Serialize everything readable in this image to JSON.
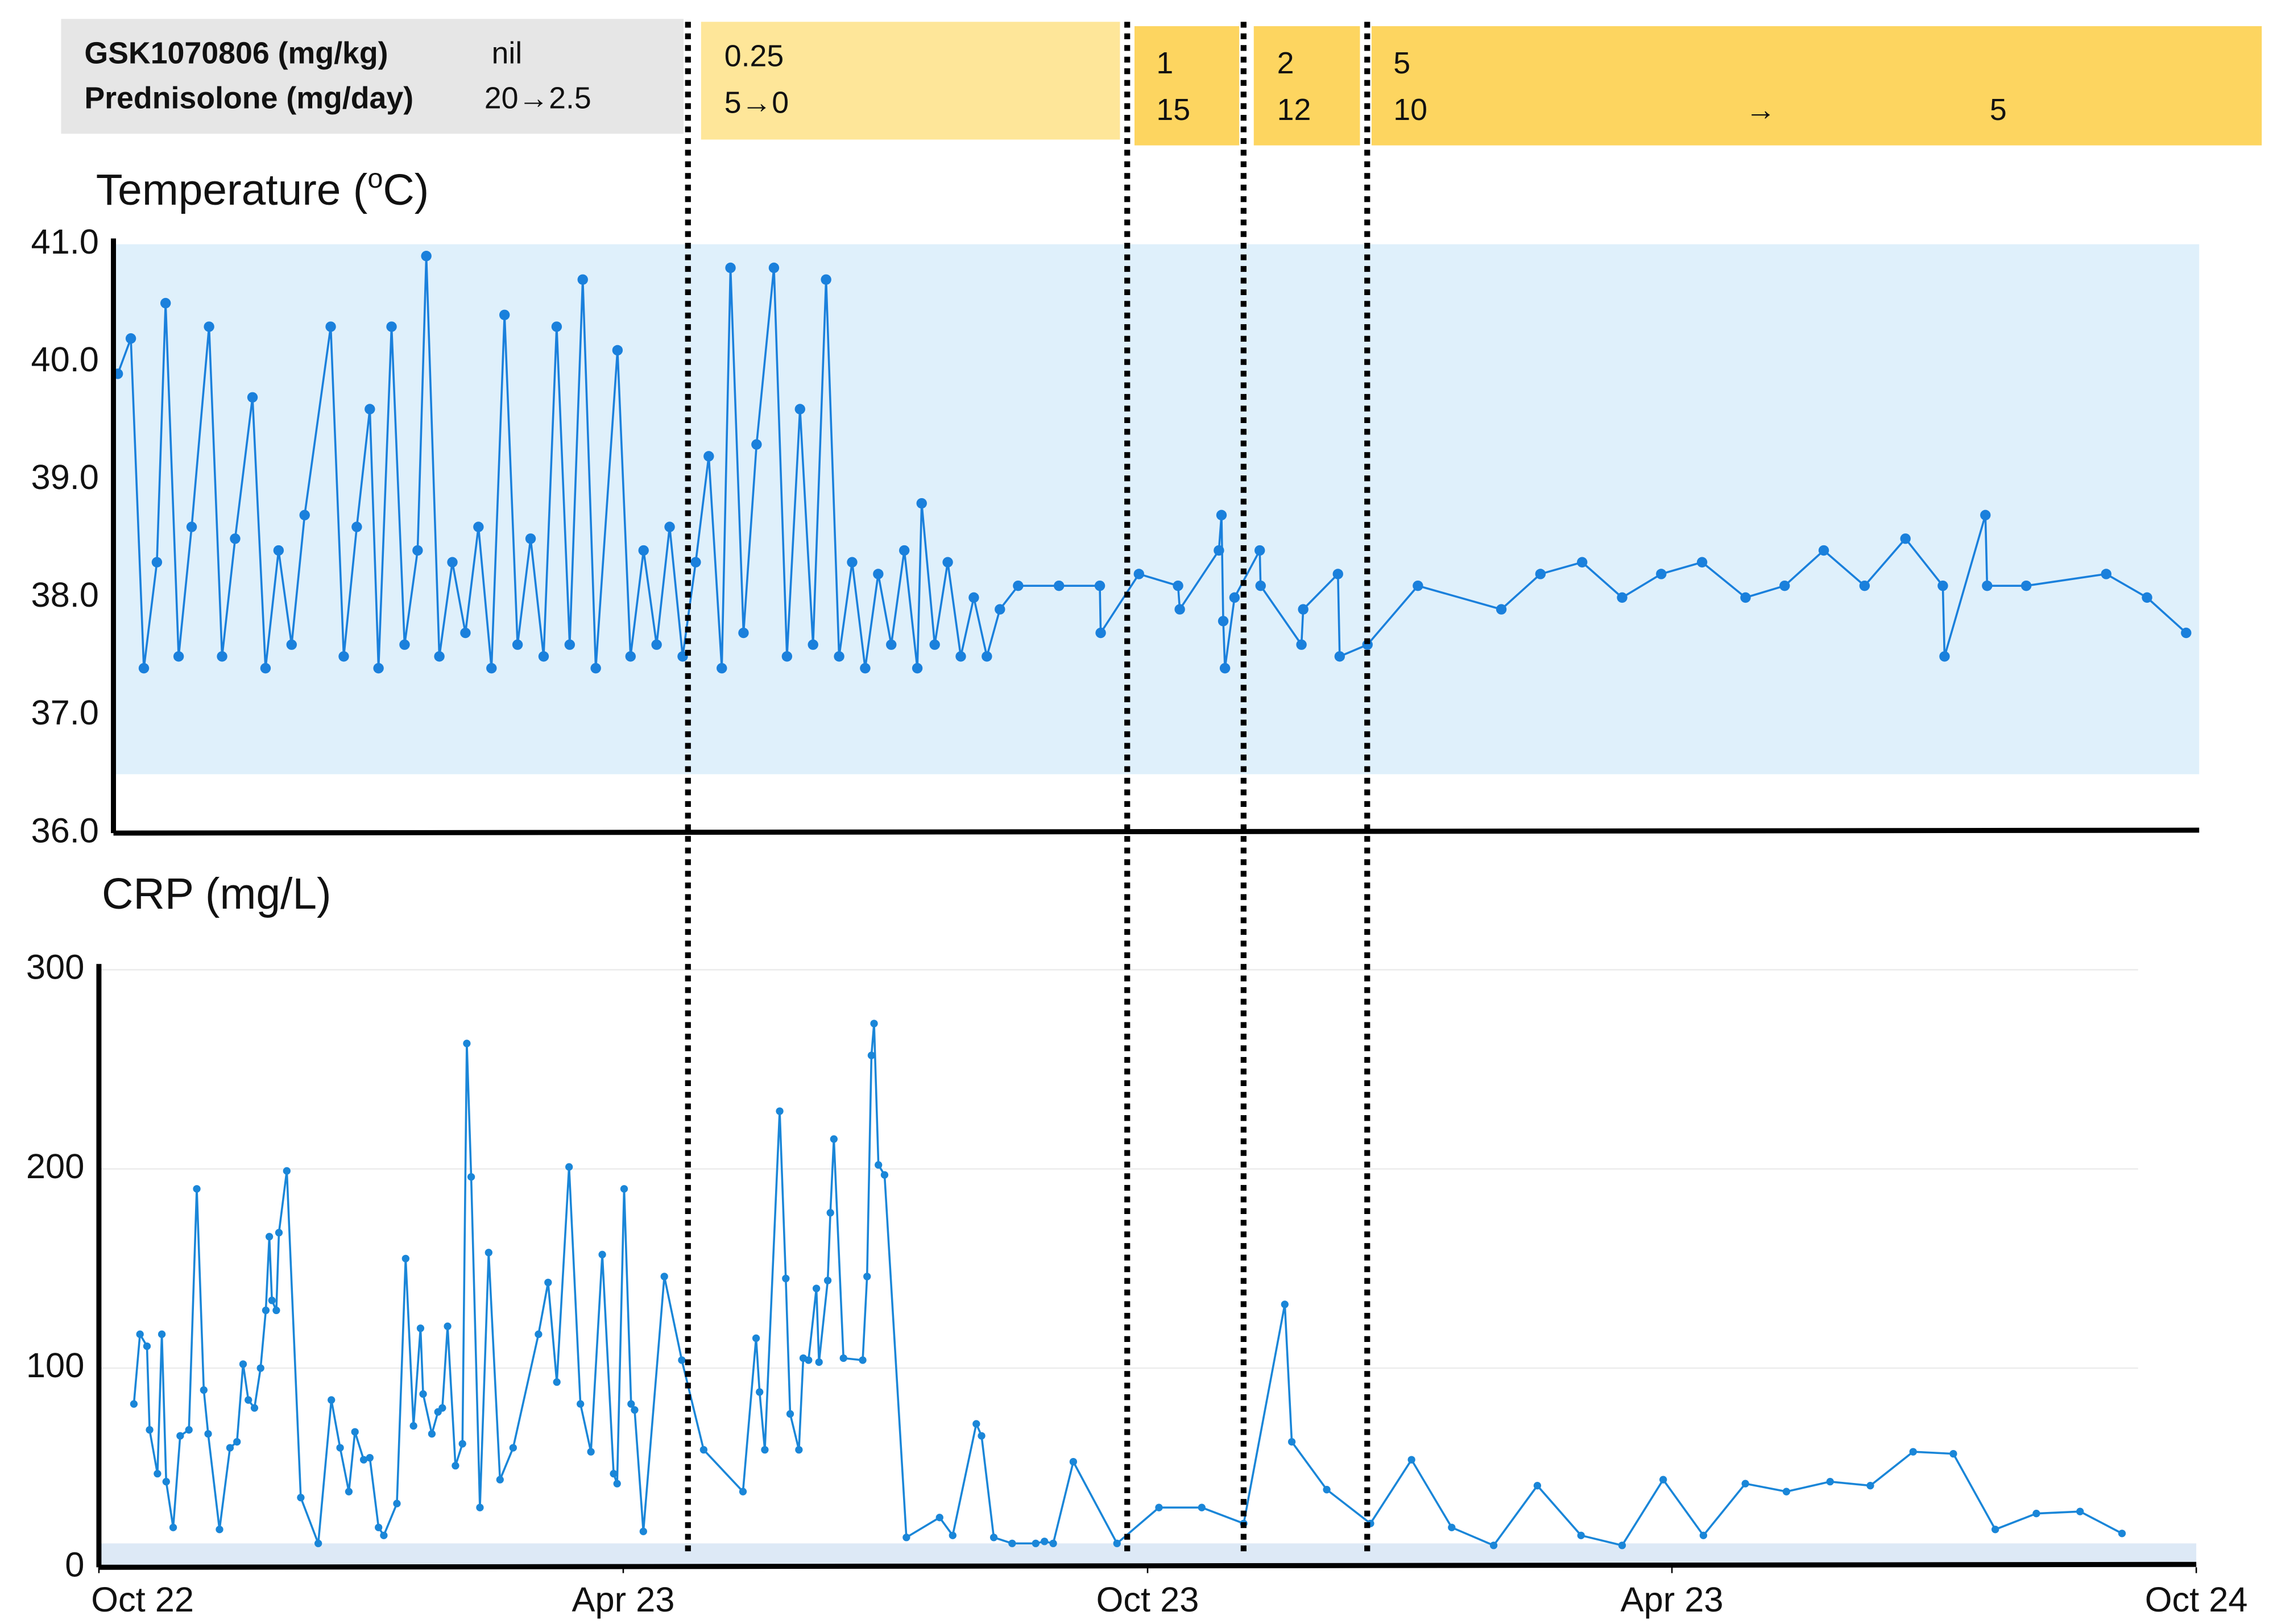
{
  "dosing": {
    "row_labels": [
      "GSK1070806 (mg/kg)",
      "Prednisolone (mg/day)"
    ],
    "periods": [
      {
        "gsk": "nil",
        "prednisolone": "20→2.5"
      },
      {
        "gsk": "0.25",
        "prednisolone": "5→0"
      },
      {
        "gsk": "1",
        "prednisolone": "15"
      },
      {
        "gsk": "2",
        "prednisolone": "12"
      },
      {
        "gsk": "5",
        "prednisolone": "10",
        "arrow": "→",
        "prednisolone_end": "5"
      }
    ]
  },
  "chart_data": [
    {
      "type": "line",
      "title_parts": [
        "Temperature (",
        "o",
        "C)"
      ],
      "color": "#1a80dc",
      "markers": true,
      "shade_color": "#dff0fb",
      "shaded_range": [
        36.5,
        41
      ],
      "xlim": [
        0,
        24
      ],
      "ylim": [
        36,
        41
      ],
      "yticks": [
        {
          "value": 36,
          "label": "36.0"
        },
        {
          "value": 37,
          "label": "37.0"
        },
        {
          "value": 38,
          "label": "38.0"
        },
        {
          "value": 39,
          "label": "39.0"
        },
        {
          "value": 40,
          "label": "40.0"
        },
        {
          "value": 41,
          "label": "41.0"
        }
      ],
      "grid": false,
      "x": [
        0.05,
        0.2,
        0.35,
        0.5,
        0.6,
        0.75,
        0.9,
        1.1,
        1.25,
        1.4,
        1.6,
        1.75,
        1.9,
        2.05,
        2.2,
        2.5,
        2.65,
        2.8,
        2.95,
        3.05,
        3.2,
        3.35,
        3.5,
        3.6,
        3.75,
        3.9,
        4.05,
        4.2,
        4.35,
        4.5,
        4.65,
        4.8,
        4.95,
        5.1,
        5.25,
        5.4,
        5.55,
        5.8,
        5.95,
        6.1,
        6.25,
        6.4,
        6.55,
        6.7,
        6.85,
        7.0,
        7.1,
        7.25,
        7.4,
        7.6,
        7.75,
        7.9,
        8.05,
        8.2,
        8.35,
        8.5,
        8.65,
        8.8,
        8.95,
        9.1,
        9.25,
        9.3,
        9.45,
        9.6,
        9.75,
        9.9,
        10.05,
        10.2,
        10.41,
        10.88,
        11.35,
        11.36,
        11.8,
        12.25,
        12.27,
        12.72,
        12.75,
        12.77,
        12.79,
        12.9,
        13.19,
        13.2,
        13.67,
        13.69,
        14.09,
        14.11,
        14.43,
        15.01,
        15.97,
        16.42,
        16.9,
        17.36,
        17.81,
        18.28,
        18.78,
        19.23,
        19.68,
        20.15,
        20.62,
        21.05,
        21.07,
        21.54,
        21.56,
        22.01,
        22.93,
        23.4,
        23.85
      ],
      "values": [
        39.9,
        40.2,
        37.4,
        38.3,
        40.5,
        37.5,
        38.6,
        40.3,
        37.5,
        38.5,
        39.7,
        37.4,
        38.4,
        37.6,
        38.7,
        40.3,
        37.5,
        38.6,
        39.6,
        37.4,
        40.3,
        37.6,
        38.4,
        40.9,
        37.5,
        38.3,
        37.7,
        38.6,
        37.4,
        40.4,
        37.6,
        38.5,
        37.5,
        40.3,
        37.6,
        40.7,
        37.4,
        40.1,
        37.5,
        38.4,
        37.6,
        38.6,
        37.5,
        38.3,
        39.2,
        37.4,
        40.8,
        37.7,
        39.3,
        40.8,
        37.5,
        39.6,
        37.6,
        40.7,
        37.5,
        38.3,
        37.4,
        38.2,
        37.6,
        38.4,
        37.4,
        38.8,
        37.6,
        38.3,
        37.5,
        38.0,
        37.5,
        37.9,
        38.1,
        38.1,
        38.1,
        37.7,
        38.2,
        38.1,
        37.9,
        38.4,
        38.7,
        37.8,
        37.4,
        38.0,
        38.4,
        38.1,
        37.6,
        37.9,
        38.2,
        37.5,
        37.6,
        38.1,
        37.9,
        38.2,
        38.3,
        38.0,
        38.2,
        38.3,
        38.0,
        38.1,
        38.4,
        38.1,
        38.5,
        38.1,
        37.5,
        38.7,
        38.1,
        38.1,
        38.2,
        38.0,
        37.7
      ]
    },
    {
      "type": "line",
      "title": "CRP (mg/L)",
      "color": "#1a86d8",
      "markers": true,
      "shade_color": "#dde9f6",
      "shaded_range": [
        0,
        12
      ],
      "xlim": [
        0,
        24
      ],
      "xticks": [
        {
          "value": 0,
          "label": "Oct 22"
        },
        {
          "value": 6,
          "label": "Apr 23"
        },
        {
          "value": 12,
          "label": "Oct 23"
        },
        {
          "value": 18,
          "label": "Apr 23"
        },
        {
          "value": 24,
          "label": "Oct 24"
        }
      ],
      "ylim": [
        0,
        300
      ],
      "yticks": [
        0,
        100,
        200,
        300
      ],
      "grid": true,
      "x": [
        0.4,
        0.47,
        0.55,
        0.58,
        0.67,
        0.72,
        0.77,
        0.85,
        0.93,
        1.03,
        1.12,
        1.2,
        1.25,
        1.38,
        1.5,
        1.58,
        1.65,
        1.71,
        1.78,
        1.85,
        1.91,
        1.95,
        1.98,
        2.03,
        2.06,
        2.15,
        2.31,
        2.51,
        2.66,
        2.76,
        2.86,
        2.93,
        3.03,
        3.1,
        3.2,
        3.26,
        3.41,
        3.51,
        3.6,
        3.68,
        3.71,
        3.81,
        3.88,
        3.93,
        3.99,
        4.08,
        4.16,
        4.21,
        4.26,
        4.36,
        4.46,
        4.59,
        4.74,
        5.03,
        5.14,
        5.24,
        5.38,
        5.51,
        5.63,
        5.76,
        5.89,
        5.93,
        6.01,
        6.09,
        6.13,
        6.23,
        6.47,
        6.67,
        6.92,
        7.37,
        7.52,
        7.56,
        7.62,
        7.79,
        7.86,
        7.91,
        8.01,
        8.06,
        8.12,
        8.21,
        8.24,
        8.34,
        8.37,
        8.41,
        8.52,
        8.74,
        8.79,
        8.84,
        8.87,
        8.92,
        8.99,
        9.24,
        9.62,
        9.77,
        10.04,
        10.1,
        10.24,
        10.45,
        10.72,
        10.82,
        10.92,
        11.15,
        11.65,
        12.13,
        12.62,
        13.1,
        13.57,
        13.65,
        14.05,
        14.55,
        15.02,
        15.48,
        15.96,
        16.46,
        16.96,
        17.43,
        17.9,
        18.36,
        18.84,
        19.31,
        19.81,
        20.27,
        20.76,
        21.22,
        21.7,
        22.17,
        22.67,
        23.15
      ],
      "values": [
        82,
        117,
        111,
        69,
        47,
        117,
        43,
        20,
        66,
        69,
        190,
        89,
        67,
        19,
        60,
        63,
        102,
        84,
        80,
        100,
        129,
        166,
        134,
        129,
        168,
        199,
        35,
        12,
        84,
        60,
        38,
        68,
        54,
        55,
        20,
        16,
        32,
        155,
        71,
        120,
        87,
        67,
        78,
        80,
        121,
        51,
        62,
        263,
        196,
        30,
        158,
        44,
        60,
        117,
        143,
        93,
        201,
        82,
        58,
        157,
        47,
        42,
        190,
        82,
        79,
        18,
        146,
        104,
        59,
        38,
        115,
        88,
        59,
        229,
        145,
        77,
        59,
        105,
        104,
        140,
        103,
        144,
        178,
        215,
        105,
        104,
        146,
        257,
        273,
        202,
        197,
        15,
        25,
        16,
        72,
        66,
        15,
        12,
        12,
        13,
        12,
        53,
        12,
        30,
        30,
        22,
        132,
        63,
        39,
        22,
        54,
        20,
        11,
        41,
        16,
        11,
        44,
        16,
        42,
        38,
        43,
        41,
        58,
        57,
        19,
        27,
        28,
        17
      ]
    }
  ]
}
